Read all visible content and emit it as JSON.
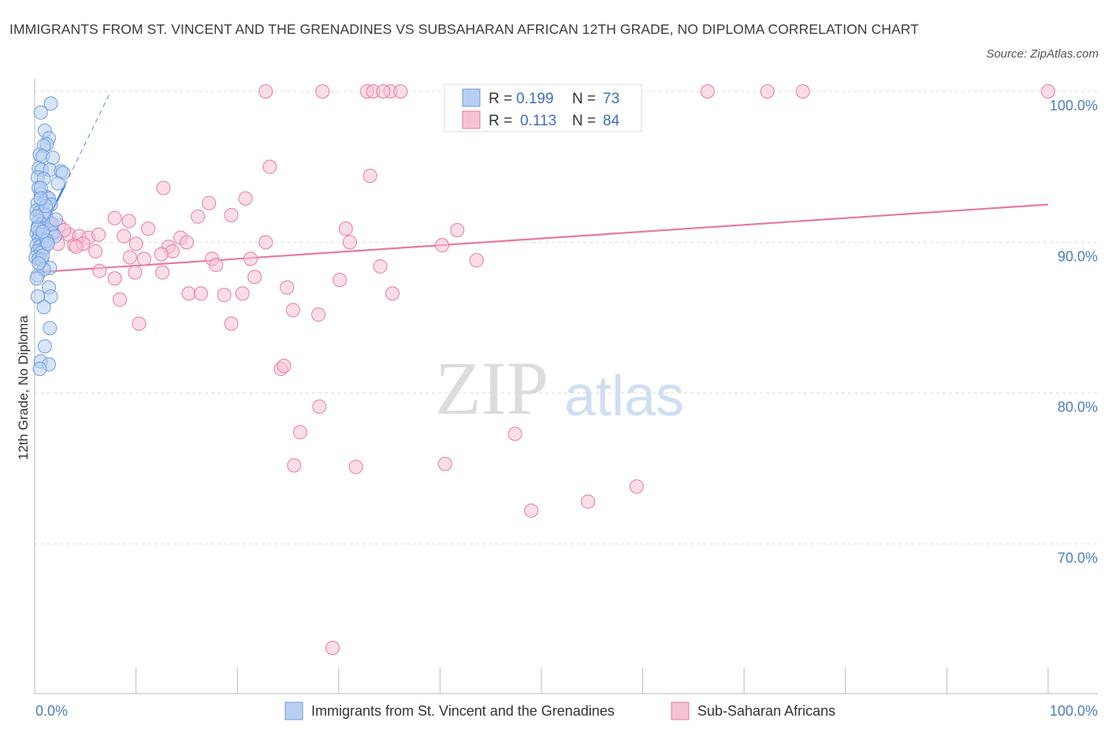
{
  "title": "IMMIGRANTS FROM ST. VINCENT AND THE GRENADINES VS SUBSAHARAN AFRICAN 12TH GRADE, NO DIPLOMA CORRELATION CHART",
  "source": "Source: ZipAtlas.com",
  "watermark": {
    "zip": "ZIP",
    "atlas": "atlas"
  },
  "colors": {
    "blue": "#6d9be0",
    "blue_fill": "#b8cff2",
    "pink": "#e8799f",
    "pink_fill": "#f5c2d4",
    "grid": "#dddddd",
    "tick_label": "#4a7cc7"
  },
  "chart_data": {
    "type": "scatter",
    "xlabel": "",
    "ylabel": "12th Grade, No Diploma",
    "xlim": [
      0,
      100
    ],
    "ylim": [
      60,
      100
    ],
    "x_tick_labels": [
      "0.0%",
      "100.0%"
    ],
    "y_ticks": [
      {
        "value": 100,
        "label": "100.0%"
      },
      {
        "value": 90,
        "label": "90.0%"
      },
      {
        "value": 80,
        "label": "80.0%"
      },
      {
        "value": 70,
        "label": "70.0%"
      }
    ],
    "grid": "horizontal dashed",
    "legend_stats": [
      {
        "r_label": "R =",
        "r": "0.199",
        "n_label": "N =",
        "n": "73"
      },
      {
        "r_label": "R =",
        "r": "0.113",
        "n_label": "N =",
        "n": "84"
      }
    ],
    "series": [
      {
        "name": "Immigrants from St. Vincent and the Grenadines",
        "color": "#6d9be0",
        "trend": {
          "x": [
            0.0,
            3.0
          ],
          "y": [
            89.8,
            93.8
          ]
        },
        "trend_extended": {
          "x": [
            3.0,
            7.5
          ],
          "y": [
            93.8,
            100.0
          ]
        },
        "points": [
          [
            1.6,
            99.2
          ],
          [
            0.6,
            98.6
          ],
          [
            1.0,
            97.4
          ],
          [
            1.4,
            96.9
          ],
          [
            1.2,
            96.5
          ],
          [
            0.9,
            96.4
          ],
          [
            0.5,
            95.8
          ],
          [
            0.8,
            95.7
          ],
          [
            1.8,
            95.6
          ],
          [
            0.4,
            94.9
          ],
          [
            0.7,
            94.8
          ],
          [
            1.5,
            94.8
          ],
          [
            2.6,
            94.7
          ],
          [
            2.8,
            94.6
          ],
          [
            0.3,
            94.3
          ],
          [
            0.9,
            94.2
          ],
          [
            2.3,
            93.9
          ],
          [
            0.4,
            93.6
          ],
          [
            0.6,
            93.2
          ],
          [
            1.2,
            93.0
          ],
          [
            1.4,
            92.9
          ],
          [
            0.3,
            92.6
          ],
          [
            0.9,
            92.6
          ],
          [
            1.6,
            92.5
          ],
          [
            0.2,
            92.1
          ],
          [
            0.5,
            92.0
          ],
          [
            0.8,
            91.9
          ],
          [
            1.1,
            91.8
          ],
          [
            0.4,
            91.4
          ],
          [
            0.7,
            91.2
          ],
          [
            0.3,
            91.0
          ],
          [
            0.9,
            90.9
          ],
          [
            1.3,
            90.8
          ],
          [
            0.2,
            90.6
          ],
          [
            0.5,
            90.5
          ],
          [
            1.0,
            90.5
          ],
          [
            1.8,
            90.6
          ],
          [
            0.4,
            90.3
          ],
          [
            0.7,
            90.2
          ],
          [
            0.2,
            89.8
          ],
          [
            0.5,
            89.7
          ],
          [
            0.9,
            89.6
          ],
          [
            0.3,
            89.4
          ],
          [
            0.6,
            89.3
          ],
          [
            0.1,
            89.0
          ],
          [
            0.4,
            88.9
          ],
          [
            0.7,
            88.8
          ],
          [
            1.5,
            88.3
          ],
          [
            0.9,
            88.2
          ],
          [
            0.3,
            87.8
          ],
          [
            0.2,
            87.6
          ],
          [
            1.4,
            87.0
          ],
          [
            1.6,
            86.4
          ],
          [
            0.3,
            86.4
          ],
          [
            0.9,
            85.7
          ],
          [
            1.5,
            84.3
          ],
          [
            1.0,
            83.1
          ],
          [
            0.6,
            82.1
          ],
          [
            1.4,
            81.9
          ],
          [
            0.5,
            81.6
          ],
          [
            2.0,
            90.4
          ],
          [
            1.2,
            90.1
          ],
          [
            0.8,
            89.1
          ],
          [
            0.3,
            90.9
          ],
          [
            1.1,
            92.4
          ],
          [
            0.6,
            93.6
          ],
          [
            1.7,
            91.2
          ],
          [
            0.2,
            91.7
          ],
          [
            0.8,
            90.7
          ],
          [
            1.3,
            89.9
          ],
          [
            0.4,
            88.6
          ],
          [
            2.1,
            91.5
          ],
          [
            0.6,
            92.9
          ]
        ]
      },
      {
        "name": "Sub-Saharan Africans",
        "color": "#e8799f",
        "trend": {
          "x": [
            0,
            100
          ],
          "y": [
            88.0,
            92.5
          ]
        },
        "points": [
          [
            22.8,
            100
          ],
          [
            28.4,
            100
          ],
          [
            32.8,
            100
          ],
          [
            33.4,
            100
          ],
          [
            35.1,
            100
          ],
          [
            36.1,
            100
          ],
          [
            34.4,
            100
          ],
          [
            46.4,
            100
          ],
          [
            55.1,
            100
          ],
          [
            66.4,
            100
          ],
          [
            72.3,
            100
          ],
          [
            75.8,
            100
          ],
          [
            100,
            100
          ],
          [
            23.2,
            95.0
          ],
          [
            33.1,
            94.4
          ],
          [
            12.7,
            93.6
          ],
          [
            20.8,
            92.9
          ],
          [
            17.2,
            92.6
          ],
          [
            7.9,
            91.6
          ],
          [
            9.3,
            91.4
          ],
          [
            1.5,
            91.3
          ],
          [
            2.4,
            91.1
          ],
          [
            16.1,
            91.7
          ],
          [
            19.4,
            91.8
          ],
          [
            30.7,
            90.9
          ],
          [
            41.7,
            90.8
          ],
          [
            11.2,
            90.9
          ],
          [
            3.4,
            90.5
          ],
          [
            4.4,
            90.4
          ],
          [
            5.3,
            90.3
          ],
          [
            8.8,
            90.4
          ],
          [
            14.4,
            90.3
          ],
          [
            15.0,
            90.0
          ],
          [
            22.8,
            90.0
          ],
          [
            31.1,
            90.0
          ],
          [
            1.6,
            90.6
          ],
          [
            2.3,
            89.9
          ],
          [
            3.9,
            89.8
          ],
          [
            4.8,
            89.9
          ],
          [
            10.0,
            89.9
          ],
          [
            13.2,
            89.7
          ],
          [
            40.2,
            89.8
          ],
          [
            6.0,
            89.4
          ],
          [
            13.6,
            89.4
          ],
          [
            9.4,
            89.0
          ],
          [
            10.8,
            88.9
          ],
          [
            17.5,
            88.9
          ],
          [
            21.3,
            88.9
          ],
          [
            43.6,
            88.8
          ],
          [
            17.9,
            88.5
          ],
          [
            34.1,
            88.4
          ],
          [
            6.4,
            88.1
          ],
          [
            9.9,
            88.0
          ],
          [
            12.6,
            88.0
          ],
          [
            7.9,
            87.6
          ],
          [
            21.7,
            87.7
          ],
          [
            30.1,
            87.5
          ],
          [
            24.9,
            87.0
          ],
          [
            15.2,
            86.6
          ],
          [
            16.4,
            86.6
          ],
          [
            18.7,
            86.5
          ],
          [
            20.5,
            86.6
          ],
          [
            35.3,
            86.6
          ],
          [
            8.4,
            86.2
          ],
          [
            25.5,
            85.5
          ],
          [
            28.0,
            85.2
          ],
          [
            10.3,
            84.6
          ],
          [
            19.4,
            84.6
          ],
          [
            24.3,
            81.6
          ],
          [
            24.6,
            81.8
          ],
          [
            28.1,
            79.1
          ],
          [
            26.2,
            77.4
          ],
          [
            47.4,
            77.3
          ],
          [
            25.6,
            75.2
          ],
          [
            31.7,
            75.1
          ],
          [
            40.5,
            75.3
          ],
          [
            59.4,
            73.8
          ],
          [
            54.6,
            72.8
          ],
          [
            49.0,
            72.2
          ],
          [
            29.4,
            63.1
          ],
          [
            4.1,
            89.7
          ],
          [
            2.9,
            90.8
          ],
          [
            12.5,
            89.2
          ],
          [
            6.3,
            90.5
          ]
        ]
      }
    ]
  }
}
